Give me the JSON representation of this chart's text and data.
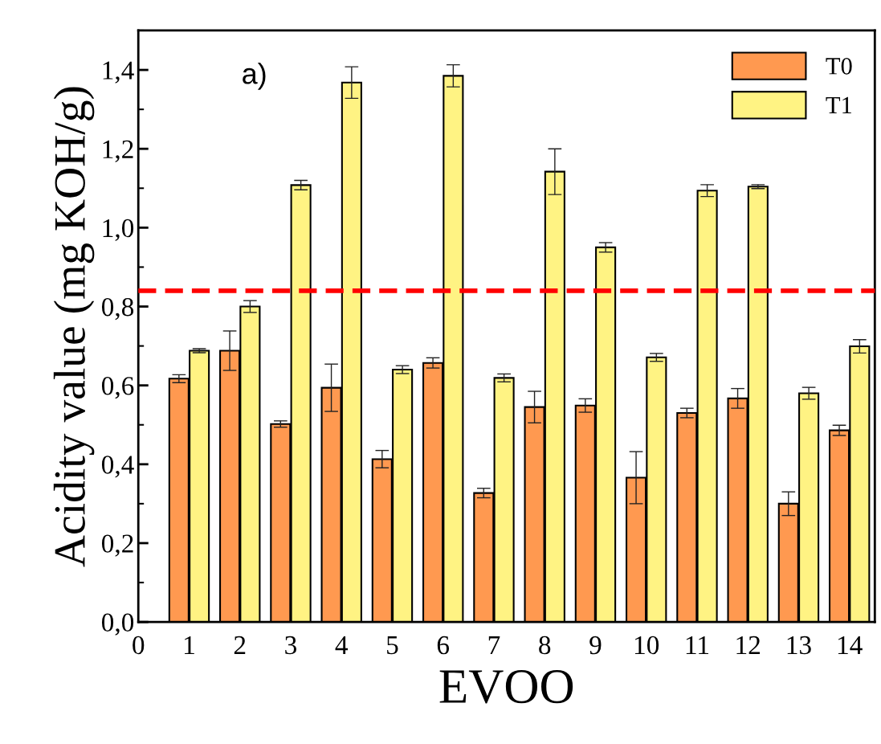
{
  "chart_data": {
    "type": "bar",
    "xlabel": "EVOO",
    "ylabel": "Acidity value (mg KOH/g)",
    "x": [
      1,
      2,
      3,
      4,
      5,
      6,
      7,
      8,
      9,
      10,
      11,
      12,
      13,
      14
    ],
    "series": [
      {
        "name": "T0",
        "color": "#ff9950",
        "values": [
          0.617,
          0.688,
          0.502,
          0.594,
          0.413,
          0.657,
          0.327,
          0.545,
          0.549,
          0.366,
          0.53,
          0.567,
          0.3,
          0.486
        ],
        "errors": [
          0.01,
          0.05,
          0.008,
          0.06,
          0.022,
          0.013,
          0.012,
          0.04,
          0.017,
          0.066,
          0.012,
          0.025,
          0.03,
          0.013
        ]
      },
      {
        "name": "T1",
        "color": "#fff383",
        "values": [
          0.688,
          0.8,
          1.108,
          1.368,
          0.64,
          1.385,
          0.619,
          1.142,
          0.95,
          0.671,
          1.094,
          1.104,
          0.58,
          0.699
        ],
        "errors": [
          0.005,
          0.015,
          0.012,
          0.04,
          0.01,
          0.028,
          0.01,
          0.058,
          0.012,
          0.01,
          0.015,
          0.005,
          0.015,
          0.017
        ]
      }
    ],
    "xlim": [
      0,
      14.5
    ],
    "xticks": [
      0,
      1,
      2,
      3,
      4,
      5,
      6,
      7,
      8,
      9,
      10,
      11,
      12,
      13,
      14
    ],
    "ylim": [
      0,
      1.5
    ],
    "yticks": [
      {
        "value": 0,
        "label": "0,0"
      },
      {
        "value": 0.2,
        "label": "0,2"
      },
      {
        "value": 0.4,
        "label": "0,4"
      },
      {
        "value": 0.6,
        "label": "0,6"
      },
      {
        "value": 0.8,
        "label": "0,8"
      },
      {
        "value": 1.0,
        "label": "1,0"
      },
      {
        "value": 1.2,
        "label": "1,2"
      },
      {
        "value": 1.4,
        "label": "1,4"
      }
    ],
    "ref_lines": [
      {
        "axis": "y",
        "value": 0.84,
        "color": "#ff0000",
        "line_style": "dashed"
      }
    ],
    "annotations": [
      "a)"
    ],
    "legend": "top right",
    "grid": false
  }
}
